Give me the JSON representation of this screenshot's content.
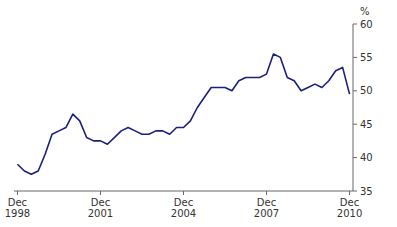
{
  "chart_data": {
    "type": "line",
    "title": "",
    "ylabel": "%",
    "categories": [
      "Dec\n1998",
      null,
      null,
      null,
      null,
      null,
      null,
      null,
      null,
      null,
      null,
      null,
      "Dec\n2001",
      null,
      null,
      null,
      null,
      null,
      null,
      null,
      null,
      null,
      null,
      null,
      "Dec\n2004",
      null,
      null,
      null,
      null,
      null,
      null,
      null,
      null,
      null,
      null,
      null,
      "Dec\n2007",
      null,
      null,
      null,
      null,
      null,
      null,
      null,
      null,
      null,
      null,
      null,
      "Dec\n2010"
    ],
    "values": [
      39.0,
      38.0,
      37.5,
      38.0,
      40.5,
      43.5,
      44.0,
      44.5,
      46.5,
      45.5,
      43.0,
      42.5,
      42.5,
      42.0,
      43.0,
      44.0,
      44.5,
      44.0,
      43.5,
      43.5,
      44.0,
      44.0,
      43.5,
      44.5,
      44.5,
      45.5,
      47.5,
      49.0,
      50.5,
      50.5,
      50.5,
      50.0,
      51.5,
      52.0,
      52.0,
      52.0,
      52.5,
      55.5,
      55.0,
      52.0,
      51.5,
      50.0,
      50.5,
      51.0,
      50.5,
      51.5,
      53.0,
      53.5,
      49.5
    ],
    "color": "#1a2080",
    "ylim": [
      35,
      60
    ],
    "yticks": [
      35,
      40,
      45,
      50,
      55,
      60
    ],
    "grid": false
  }
}
